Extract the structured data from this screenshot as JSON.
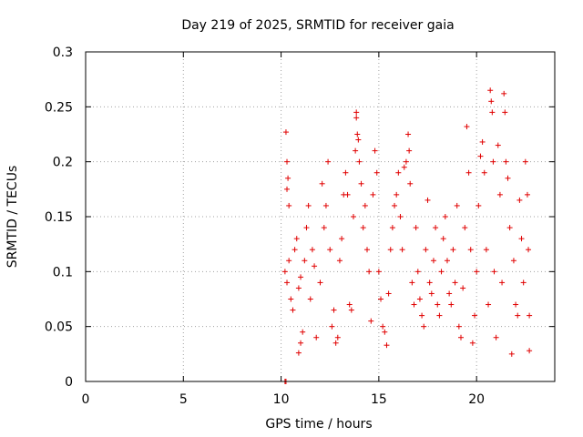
{
  "chart_data": {
    "type": "scatter",
    "title": "Day 219 of 2025, SRMTID for receiver gaia",
    "xlabel": "GPS time / hours",
    "ylabel": "SRMTID / TECUs",
    "xlim": [
      0,
      24
    ],
    "ylim": [
      0,
      0.3
    ],
    "xticks": [
      0,
      5,
      10,
      15,
      20
    ],
    "xtick_labels": [
      "0",
      "5",
      "10",
      "15",
      "20"
    ],
    "yticks": [
      0,
      0.05,
      0.1,
      0.15,
      0.2,
      0.25,
      0.3
    ],
    "ytick_labels": [
      "0",
      "0.05",
      "0.1",
      "0.15",
      "0.2",
      "0.25",
      "0.3"
    ],
    "grid": true,
    "marker": "+",
    "color": "#e00000",
    "series": [
      {
        "name": "SRMTID",
        "points": [
          [
            10.2,
            0.0
          ],
          [
            10.25,
            0.0
          ],
          [
            10.25,
            0.227
          ],
          [
            10.3,
            0.2
          ],
          [
            10.35,
            0.185
          ],
          [
            10.3,
            0.175
          ],
          [
            10.4,
            0.16
          ],
          [
            10.2,
            0.1
          ],
          [
            10.3,
            0.09
          ],
          [
            10.4,
            0.11
          ],
          [
            10.5,
            0.075
          ],
          [
            10.6,
            0.065
          ],
          [
            10.7,
            0.12
          ],
          [
            10.8,
            0.13
          ],
          [
            10.9,
            0.085
          ],
          [
            11.0,
            0.095
          ],
          [
            11.1,
            0.045
          ],
          [
            10.9,
            0.026
          ],
          [
            11.0,
            0.035
          ],
          [
            11.2,
            0.11
          ],
          [
            11.3,
            0.14
          ],
          [
            11.4,
            0.16
          ],
          [
            11.5,
            0.075
          ],
          [
            11.6,
            0.12
          ],
          [
            11.7,
            0.105
          ],
          [
            11.8,
            0.04
          ],
          [
            12.0,
            0.09
          ],
          [
            12.1,
            0.18
          ],
          [
            12.2,
            0.14
          ],
          [
            12.3,
            0.16
          ],
          [
            12.4,
            0.2
          ],
          [
            12.5,
            0.12
          ],
          [
            12.6,
            0.05
          ],
          [
            12.7,
            0.065
          ],
          [
            12.8,
            0.035
          ],
          [
            12.9,
            0.04
          ],
          [
            13.0,
            0.11
          ],
          [
            13.1,
            0.13
          ],
          [
            13.2,
            0.17
          ],
          [
            13.3,
            0.19
          ],
          [
            13.4,
            0.17
          ],
          [
            13.5,
            0.07
          ],
          [
            13.6,
            0.065
          ],
          [
            13.7,
            0.15
          ],
          [
            13.8,
            0.21
          ],
          [
            13.85,
            0.245
          ],
          [
            13.85,
            0.24
          ],
          [
            13.9,
            0.225
          ],
          [
            13.95,
            0.22
          ],
          [
            14.0,
            0.2
          ],
          [
            14.1,
            0.18
          ],
          [
            14.2,
            0.14
          ],
          [
            14.3,
            0.16
          ],
          [
            14.4,
            0.12
          ],
          [
            14.5,
            0.1
          ],
          [
            14.6,
            0.055
          ],
          [
            14.7,
            0.17
          ],
          [
            14.8,
            0.21
          ],
          [
            14.9,
            0.19
          ],
          [
            15.0,
            0.1
          ],
          [
            15.1,
            0.075
          ],
          [
            15.2,
            0.05
          ],
          [
            15.3,
            0.045
          ],
          [
            15.4,
            0.033
          ],
          [
            15.5,
            0.08
          ],
          [
            15.6,
            0.12
          ],
          [
            15.7,
            0.14
          ],
          [
            15.8,
            0.16
          ],
          [
            15.9,
            0.17
          ],
          [
            16.0,
            0.19
          ],
          [
            16.1,
            0.15
          ],
          [
            16.2,
            0.12
          ],
          [
            16.3,
            0.195
          ],
          [
            16.4,
            0.2
          ],
          [
            16.5,
            0.225
          ],
          [
            16.55,
            0.21
          ],
          [
            16.6,
            0.18
          ],
          [
            16.7,
            0.09
          ],
          [
            16.8,
            0.07
          ],
          [
            16.9,
            0.14
          ],
          [
            17.0,
            0.1
          ],
          [
            17.1,
            0.075
          ],
          [
            17.2,
            0.06
          ],
          [
            17.3,
            0.05
          ],
          [
            17.4,
            0.12
          ],
          [
            17.5,
            0.165
          ],
          [
            17.6,
            0.09
          ],
          [
            17.7,
            0.08
          ],
          [
            17.8,
            0.11
          ],
          [
            17.9,
            0.14
          ],
          [
            18.0,
            0.07
          ],
          [
            18.1,
            0.06
          ],
          [
            18.2,
            0.1
          ],
          [
            18.3,
            0.13
          ],
          [
            18.4,
            0.15
          ],
          [
            18.5,
            0.11
          ],
          [
            18.6,
            0.08
          ],
          [
            18.7,
            0.07
          ],
          [
            18.8,
            0.12
          ],
          [
            18.9,
            0.09
          ],
          [
            19.0,
            0.16
          ],
          [
            19.1,
            0.05
          ],
          [
            19.2,
            0.04
          ],
          [
            19.3,
            0.085
          ],
          [
            19.4,
            0.14
          ],
          [
            19.5,
            0.232
          ],
          [
            19.6,
            0.19
          ],
          [
            19.7,
            0.12
          ],
          [
            19.8,
            0.035
          ],
          [
            19.9,
            0.06
          ],
          [
            20.0,
            0.1
          ],
          [
            20.1,
            0.16
          ],
          [
            20.2,
            0.205
          ],
          [
            20.3,
            0.218
          ],
          [
            20.4,
            0.19
          ],
          [
            20.5,
            0.12
          ],
          [
            20.6,
            0.07
          ],
          [
            20.7,
            0.265
          ],
          [
            20.75,
            0.255
          ],
          [
            20.8,
            0.245
          ],
          [
            20.85,
            0.2
          ],
          [
            20.9,
            0.1
          ],
          [
            21.0,
            0.04
          ],
          [
            21.1,
            0.215
          ],
          [
            21.2,
            0.17
          ],
          [
            21.3,
            0.09
          ],
          [
            21.4,
            0.262
          ],
          [
            21.45,
            0.245
          ],
          [
            21.5,
            0.2
          ],
          [
            21.6,
            0.185
          ],
          [
            21.7,
            0.14
          ],
          [
            21.8,
            0.025
          ],
          [
            21.9,
            0.11
          ],
          [
            22.0,
            0.07
          ],
          [
            22.1,
            0.06
          ],
          [
            22.2,
            0.165
          ],
          [
            22.3,
            0.13
          ],
          [
            22.4,
            0.09
          ],
          [
            22.5,
            0.2
          ],
          [
            22.6,
            0.17
          ],
          [
            22.65,
            0.12
          ],
          [
            22.7,
            0.028
          ],
          [
            22.7,
            0.06
          ]
        ]
      }
    ]
  }
}
